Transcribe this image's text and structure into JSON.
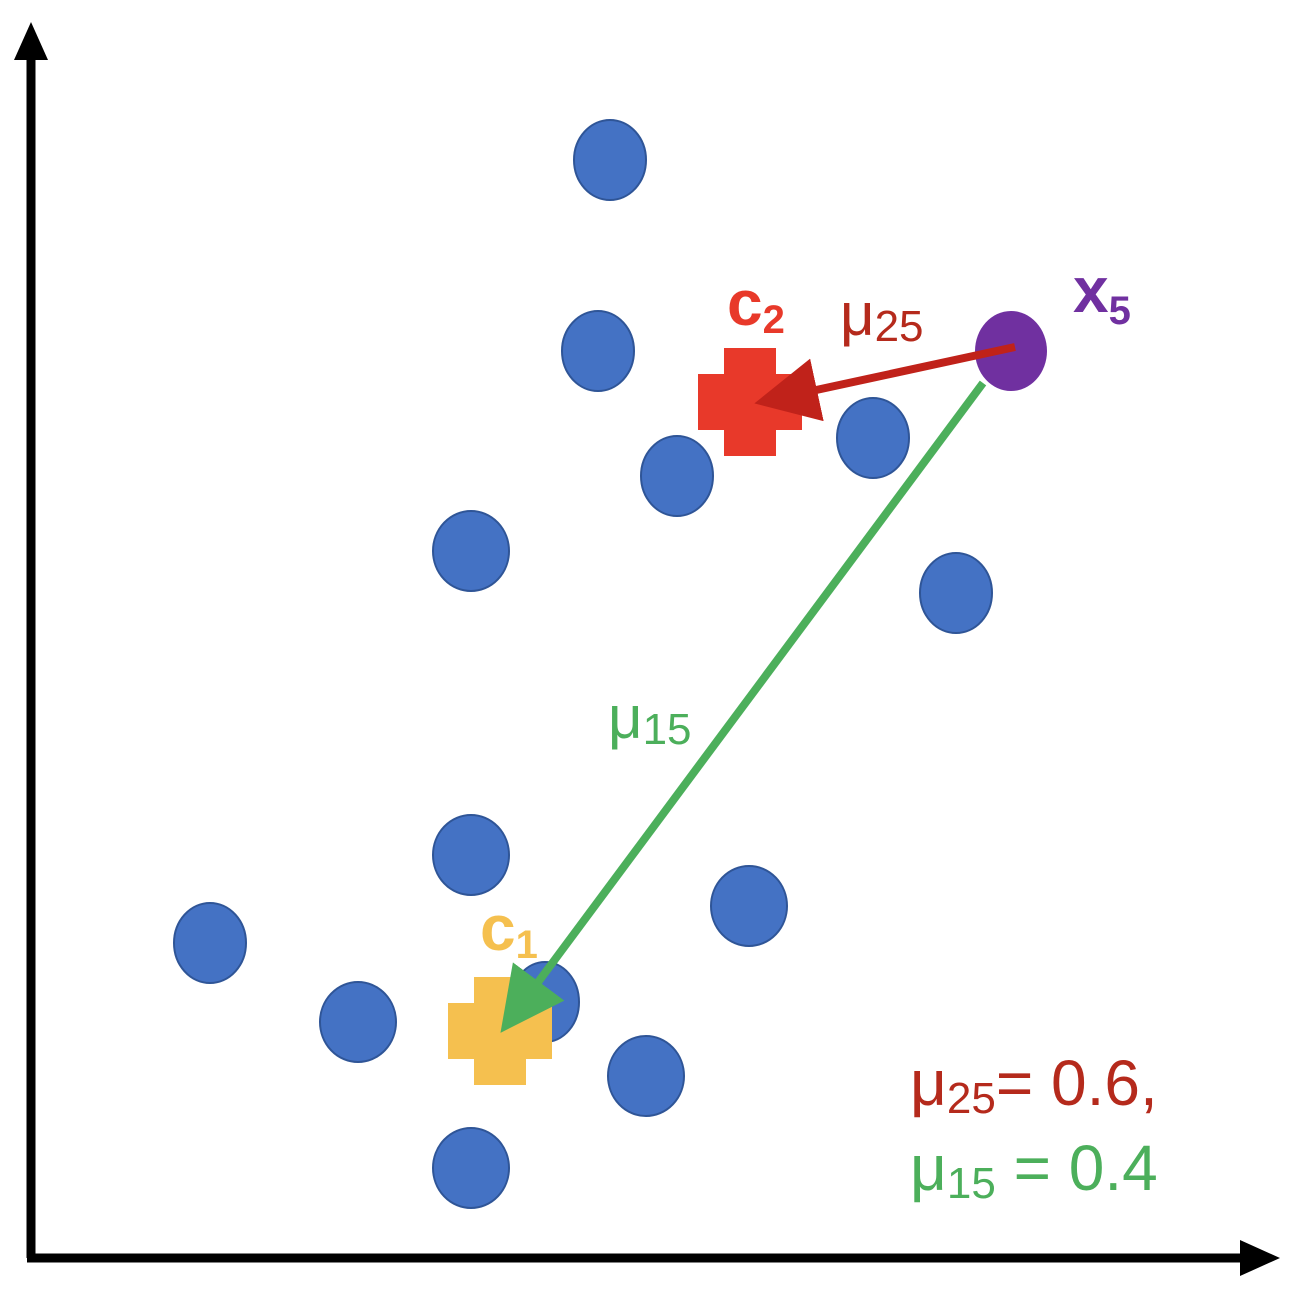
{
  "labels": {
    "c2": {
      "main": "c",
      "sub": "2"
    },
    "mu25": {
      "main": "μ",
      "sub": "25"
    },
    "x5": {
      "main": "x",
      "sub": "5"
    },
    "mu15": {
      "main": "μ",
      "sub": "15"
    },
    "c1": {
      "main": "c",
      "sub": "1"
    }
  },
  "equations": {
    "line1": {
      "mu": "μ",
      "sub": "25",
      "rest": "= 0.6,"
    },
    "line2": {
      "mu": "μ",
      "sub": "15",
      "rest": " = 0.4"
    }
  },
  "colors": {
    "point": "#4472c4",
    "point_stroke": "#2f5597",
    "c2": "#e8392a",
    "c1": "#f5c04f",
    "x5": "#7030a0",
    "arrow_red": "#c0221a",
    "arrow_green": "#4caf5b",
    "text_red": "#b52a1c",
    "text_green": "#4caf5b",
    "axis": "#000000"
  }
}
